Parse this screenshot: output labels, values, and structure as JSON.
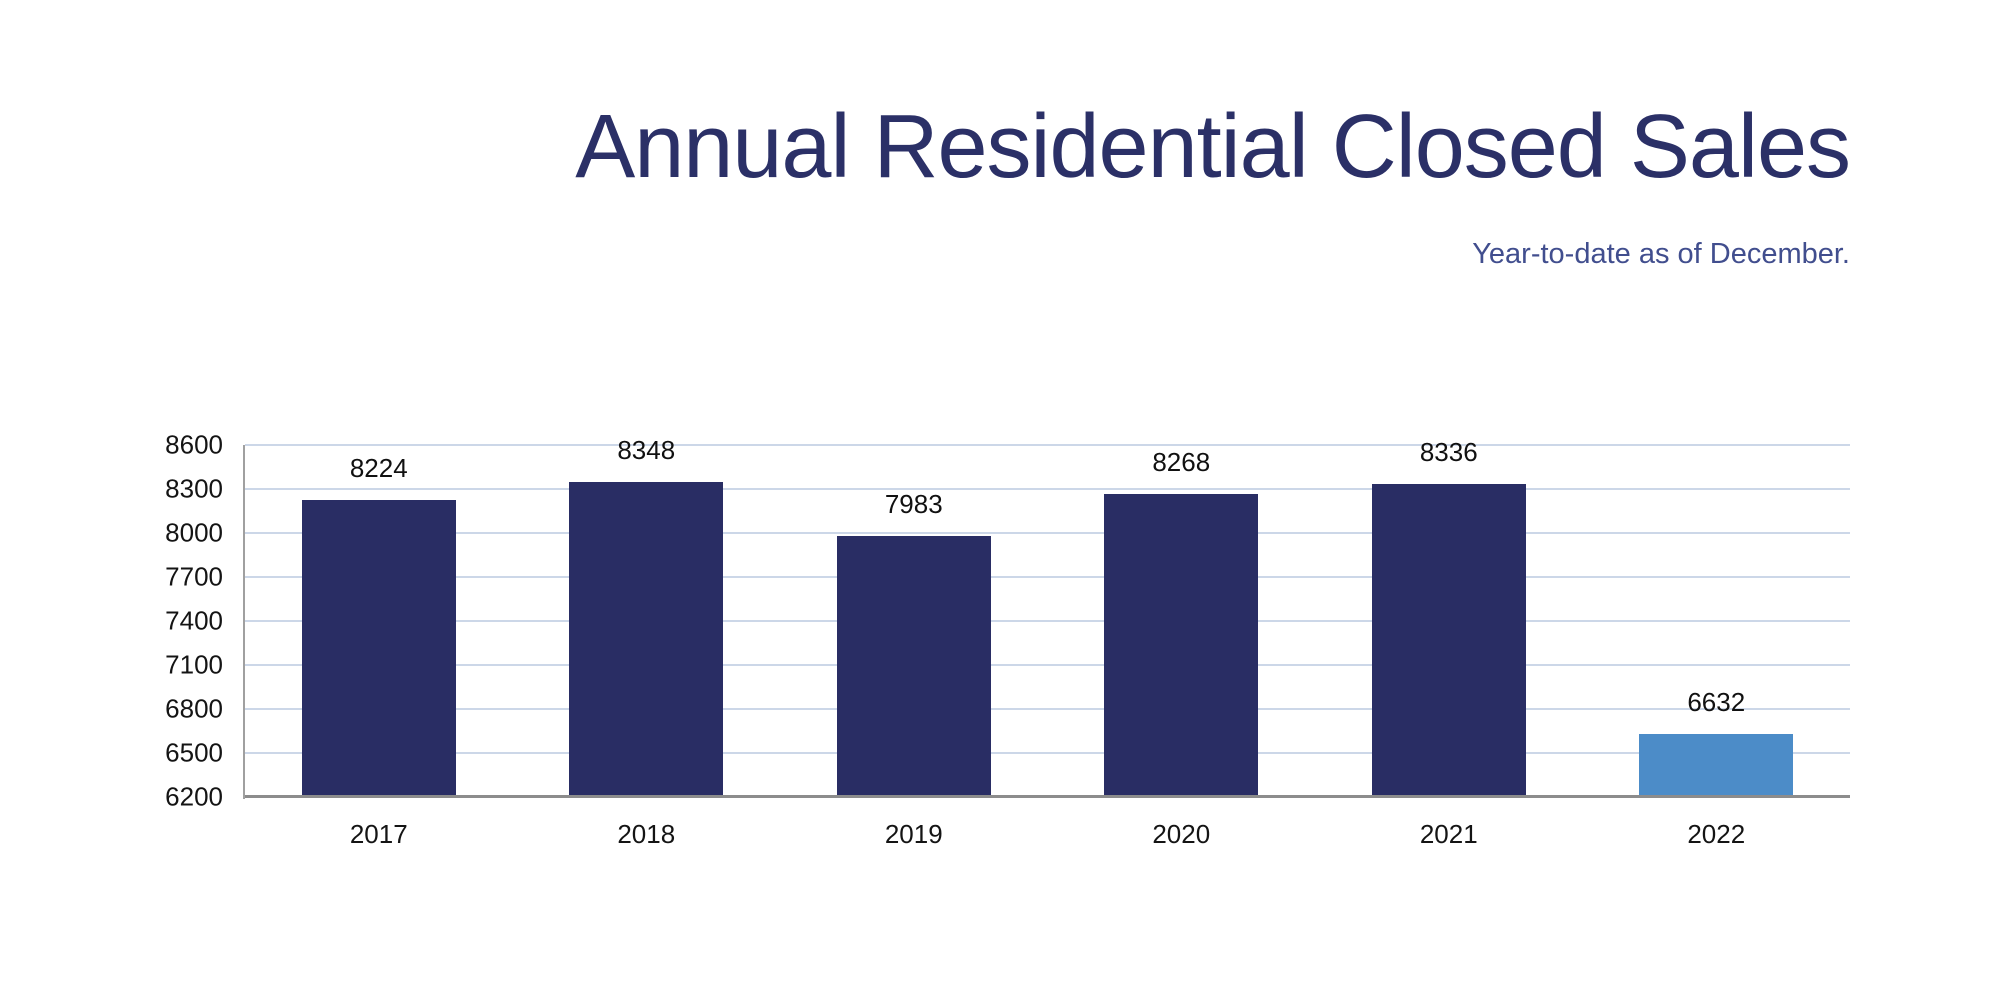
{
  "chart": {
    "title": "Annual Residential Closed Sales",
    "subtitle": "Year-to-date as of December."
  },
  "chart_data": {
    "type": "bar",
    "title": "Annual Residential Closed Sales",
    "subtitle": "Year-to-date as of December.",
    "categories": [
      "2017",
      "2018",
      "2019",
      "2020",
      "2021",
      "2022"
    ],
    "values": [
      8224,
      8348,
      7983,
      8268,
      8336,
      6632
    ],
    "bar_colors": [
      "#292d64",
      "#292d64",
      "#292d64",
      "#292d64",
      "#292d64",
      "#4c8cc8"
    ],
    "data_labels": [
      "8224",
      "8348",
      "7983",
      "8268",
      "8336",
      "6632"
    ],
    "xlabel": "",
    "ylabel": "",
    "ylim": [
      6200,
      8600
    ],
    "y_ticks": [
      6200,
      6500,
      6800,
      7100,
      7400,
      7700,
      8000,
      8300,
      8600
    ],
    "grid": true,
    "legend": false,
    "colors": {
      "bar_primary": "#292d64",
      "bar_highlight": "#4c8cc8",
      "title": "#2b3067",
      "subtitle": "#414e8e",
      "gridline": "#ccd7e8",
      "axis_line": "#8c8c8c",
      "tick_label": "#141414"
    }
  }
}
